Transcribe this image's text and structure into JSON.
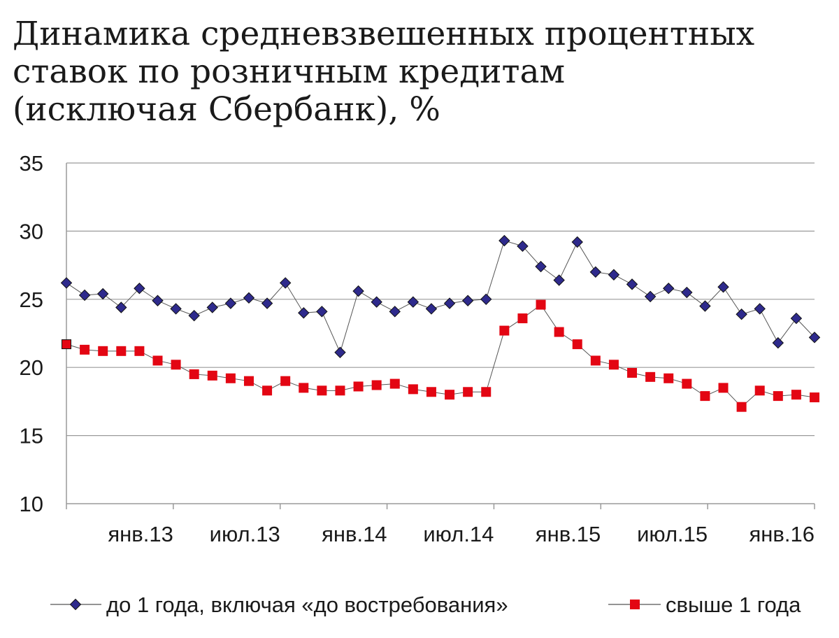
{
  "title_lines": [
    "Динамика средневзвешенных процентных",
    "ставок по розничным кредитам",
    "(исключая Сбербанк), %"
  ],
  "colors": {
    "series1": "#2e2a8c",
    "series2": "#e30613",
    "grid": "#9a9a9a",
    "line": "#555555"
  },
  "chart_data": {
    "type": "line",
    "title": "Динамика средневзвешенных процентных ставок по розничным кредитам (исключая Сбербанк), %",
    "ylim": [
      10,
      35
    ],
    "yticks": [
      "10",
      "15",
      "20",
      "25",
      "30",
      "35"
    ],
    "x_count": 42,
    "xtick_labels": [
      "янв.13",
      "июл.13",
      "янв.14",
      "июл.14",
      "янв.15",
      "июл.15",
      "янв.16"
    ],
    "xtick_index": [
      6,
      12,
      18,
      24,
      30,
      36,
      42
    ],
    "legend_position": "bottom",
    "series": [
      {
        "name": "до 1 года, включая «до востребования»",
        "marker": "diamond",
        "values": [
          26.2,
          25.3,
          25.4,
          24.4,
          25.8,
          24.9,
          24.3,
          23.8,
          24.4,
          24.7,
          25.1,
          24.7,
          26.2,
          24.0,
          24.1,
          21.1,
          25.6,
          24.8,
          24.1,
          24.8,
          24.3,
          24.7,
          24.9,
          25.0,
          29.3,
          28.9,
          27.4,
          26.4,
          29.2,
          27.0,
          26.8,
          26.1,
          25.2,
          25.8,
          25.5,
          24.5,
          25.9,
          23.9,
          24.3,
          21.8,
          23.6,
          22.2
        ]
      },
      {
        "name": "свыше 1 года",
        "marker": "square",
        "values": [
          21.7,
          21.3,
          21.2,
          21.2,
          21.2,
          20.5,
          20.2,
          19.5,
          19.4,
          19.2,
          19.0,
          18.3,
          19.0,
          18.5,
          18.3,
          18.3,
          18.6,
          18.7,
          18.8,
          18.4,
          18.2,
          18.0,
          18.2,
          18.2,
          22.7,
          23.6,
          24.6,
          22.6,
          21.7,
          20.5,
          20.2,
          19.6,
          19.3,
          19.2,
          18.8,
          17.9,
          18.5,
          17.1,
          18.3,
          17.9,
          18.0,
          17.8
        ]
      }
    ]
  }
}
